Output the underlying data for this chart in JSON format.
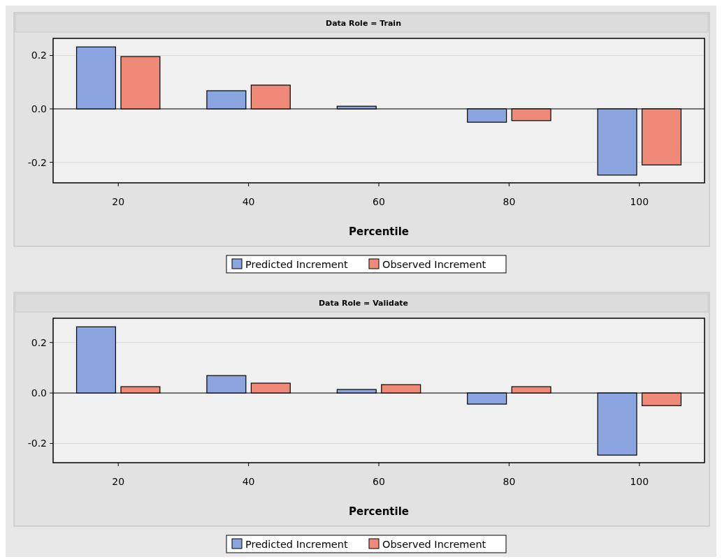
{
  "chart_data": [
    {
      "type": "bar",
      "title": "Data Role = Train",
      "xlabel": "Percentile",
      "categories": [
        "20",
        "40",
        "60",
        "80",
        "100"
      ],
      "series": [
        {
          "name": "Predicted Increment",
          "color": "#8aa5e0",
          "values": [
            0.232,
            0.068,
            0.01,
            -0.05,
            -0.248
          ]
        },
        {
          "name": "Observed Increment",
          "color": "#f08a78",
          "values": [
            0.196,
            0.089,
            0,
            -0.044,
            -0.21
          ]
        }
      ],
      "ylim": [
        -0.277,
        0.264
      ],
      "yticks": [
        {
          "value": -0.2,
          "label": "-0.2"
        },
        {
          "value": 0,
          "label": "0.0"
        },
        {
          "value": 0.2,
          "label": "0.2"
        }
      ],
      "grid": "y",
      "legend": "bottom"
    },
    {
      "type": "bar",
      "title": "Data Role = Validate",
      "xlabel": "Percentile",
      "categories": [
        "20",
        "40",
        "60",
        "80",
        "100"
      ],
      "series": [
        {
          "name": "Predicted Increment",
          "color": "#8aa5e0",
          "values": [
            0.262,
            0.069,
            0.014,
            -0.044,
            -0.246
          ]
        },
        {
          "name": "Observed Increment",
          "color": "#f08a78",
          "values": [
            0.025,
            0.039,
            0.033,
            0.025,
            -0.05
          ]
        }
      ],
      "ylim": [
        -0.276,
        0.296
      ],
      "yticks": [
        {
          "value": -0.2,
          "label": "-0.2"
        },
        {
          "value": 0,
          "label": "0.0"
        },
        {
          "value": 0.2,
          "label": "0.2"
        }
      ],
      "grid": "y",
      "legend": "bottom"
    }
  ]
}
